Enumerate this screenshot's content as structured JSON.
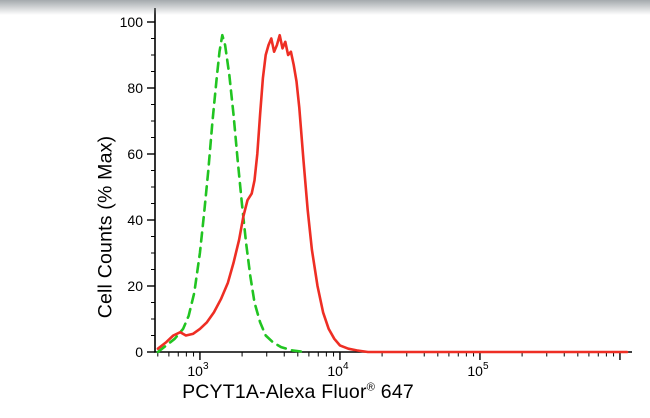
{
  "labels": {
    "y_axis": "Cell Counts (% Max)",
    "x_axis_base": "PCYT1A-Alexa Fluor",
    "x_axis_sup": "®",
    "x_axis_suffix": " 647"
  },
  "chart_data": {
    "type": "line",
    "subtype": "flow-cytometry-histogram",
    "title": "",
    "xlabel": "PCYT1A-Alexa Fluor® 647",
    "ylabel": "Cell Counts (% Max)",
    "x_scale": "log10",
    "x_range_log": [
      2.679,
      6.086
    ],
    "ylim": [
      0,
      100
    ],
    "y_major_ticks": [
      0,
      20,
      40,
      60,
      80,
      100
    ],
    "y_minor_step": 5,
    "x_major_tick_exponents": [
      3,
      4,
      5
    ],
    "x_tick_labels": [
      "10^3",
      "10^4",
      "10^5"
    ],
    "axis_color": "#000000",
    "background": "#ffffff",
    "legend": "none",
    "grid": "off",
    "series": [
      {
        "name": "green-dashed",
        "color": "#21c421",
        "style": "dashed",
        "peak_logx": 3.16,
        "peak_y": 96,
        "points_logx_y": [
          [
            2.7,
            0
          ],
          [
            2.76,
            2
          ],
          [
            2.82,
            4
          ],
          [
            2.88,
            7
          ],
          [
            2.92,
            11
          ],
          [
            2.96,
            18
          ],
          [
            3.0,
            30
          ],
          [
            3.03,
            42
          ],
          [
            3.06,
            55
          ],
          [
            3.09,
            70
          ],
          [
            3.12,
            83
          ],
          [
            3.14,
            91
          ],
          [
            3.16,
            96
          ],
          [
            3.18,
            93
          ],
          [
            3.21,
            84
          ],
          [
            3.24,
            72
          ],
          [
            3.27,
            58
          ],
          [
            3.3,
            45
          ],
          [
            3.33,
            33
          ],
          [
            3.36,
            23
          ],
          [
            3.39,
            15
          ],
          [
            3.43,
            9
          ],
          [
            3.47,
            5
          ],
          [
            3.52,
            3
          ],
          [
            3.58,
            1.5
          ],
          [
            3.66,
            0.5
          ],
          [
            3.75,
            0
          ]
        ]
      },
      {
        "name": "red-solid",
        "color": "#ee2e24",
        "style": "solid",
        "peak_logx": 3.56,
        "peak_y": 96,
        "points_logx_y": [
          [
            2.7,
            1
          ],
          [
            2.76,
            3
          ],
          [
            2.81,
            5
          ],
          [
            2.86,
            6
          ],
          [
            2.9,
            5
          ],
          [
            2.95,
            5.5
          ],
          [
            3.0,
            7
          ],
          [
            3.05,
            9
          ],
          [
            3.1,
            12
          ],
          [
            3.15,
            16
          ],
          [
            3.2,
            21
          ],
          [
            3.24,
            27
          ],
          [
            3.28,
            34
          ],
          [
            3.31,
            41
          ],
          [
            3.34,
            46
          ],
          [
            3.37,
            48
          ],
          [
            3.39,
            52
          ],
          [
            3.41,
            60
          ],
          [
            3.43,
            72
          ],
          [
            3.45,
            83
          ],
          [
            3.47,
            90
          ],
          [
            3.49,
            93
          ],
          [
            3.51,
            95
          ],
          [
            3.53,
            91
          ],
          [
            3.55,
            93
          ],
          [
            3.57,
            96
          ],
          [
            3.59,
            92
          ],
          [
            3.61,
            94
          ],
          [
            3.63,
            90
          ],
          [
            3.65,
            91
          ],
          [
            3.67,
            87
          ],
          [
            3.69,
            82
          ],
          [
            3.71,
            74
          ],
          [
            3.74,
            58
          ],
          [
            3.77,
            43
          ],
          [
            3.8,
            31
          ],
          [
            3.84,
            20
          ],
          [
            3.88,
            12
          ],
          [
            3.92,
            7
          ],
          [
            3.96,
            4
          ],
          [
            4.0,
            2
          ],
          [
            4.06,
            1
          ],
          [
            4.12,
            0.5
          ],
          [
            4.2,
            0
          ],
          [
            6.05,
            0
          ]
        ]
      }
    ]
  }
}
